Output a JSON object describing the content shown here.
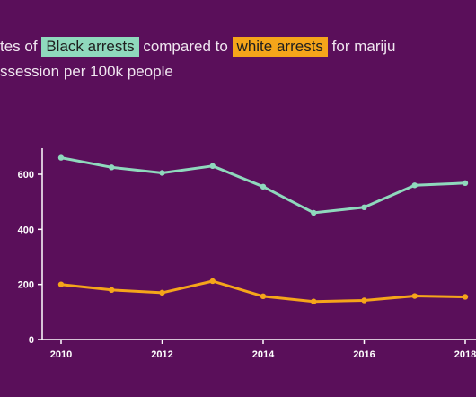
{
  "title": {
    "part1": "tes of",
    "black_label": "Black arrests",
    "part2": "compared to",
    "white_label": "white arrests",
    "part3": "for mariju",
    "line2": "ssession per 100k people"
  },
  "colors": {
    "background": "#5a0f5a",
    "black_series": "#8fd9bd",
    "white_series": "#f5a51a",
    "axis": "#ffffff",
    "text": "#f0e6f0"
  },
  "chart_data": {
    "type": "line",
    "x": [
      2010,
      2011,
      2012,
      2013,
      2014,
      2015,
      2016,
      2017,
      2018
    ],
    "xticks": [
      "2010",
      "2012",
      "2014",
      "2016",
      "2018"
    ],
    "yticks": [
      "0",
      "200",
      "400",
      "600"
    ],
    "ylim": [
      0,
      700
    ],
    "series": [
      {
        "name": "Black arrests",
        "values": [
          660,
          625,
          605,
          630,
          555,
          460,
          480,
          560,
          568
        ]
      },
      {
        "name": "white arrests",
        "values": [
          200,
          180,
          170,
          212,
          157,
          138,
          142,
          158,
          155
        ]
      }
    ]
  }
}
